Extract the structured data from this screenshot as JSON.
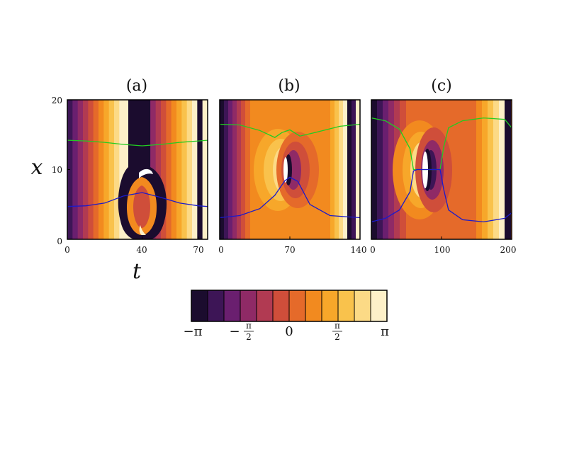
{
  "chart_data": [
    {
      "type": "heatmap",
      "title": "(a)",
      "xlabel": "t",
      "ylabel": "x",
      "xlim": [
        0,
        75
      ],
      "ylim": [
        0,
        20
      ],
      "xticks": [
        "0",
        "40",
        "70"
      ],
      "yticks": [
        "0",
        "10",
        "20"
      ],
      "series": [
        {
          "color": "#22cc22",
          "x": [
            0,
            10,
            20,
            30,
            40,
            50,
            60,
            70,
            75
          ],
          "y": [
            14.2,
            14.1,
            13.9,
            13.6,
            13.4,
            13.6,
            13.9,
            14.1,
            14.2
          ]
        },
        {
          "color": "#1a1acc",
          "x": [
            0,
            10,
            20,
            30,
            40,
            50,
            60,
            70,
            75
          ],
          "y": [
            4.7,
            4.8,
            5.2,
            6.2,
            6.7,
            6.0,
            5.2,
            4.8,
            4.7
          ]
        }
      ]
    },
    {
      "type": "heatmap",
      "title": "(b)",
      "xlabel": "",
      "ylabel": "",
      "xlim": [
        0,
        140
      ],
      "ylim": [
        0,
        20
      ],
      "xticks": [
        "0",
        "70",
        "140"
      ],
      "yticks": [],
      "series": [
        {
          "color": "#22cc22",
          "x": [
            0,
            20,
            40,
            55,
            62,
            70,
            80,
            95,
            120,
            140
          ],
          "y": [
            16.5,
            16.4,
            15.6,
            14.6,
            15.3,
            15.7,
            14.8,
            15.3,
            16.2,
            16.5
          ]
        },
        {
          "color": "#1a1acc",
          "x": [
            0,
            20,
            40,
            55,
            65,
            70,
            78,
            90,
            110,
            140
          ],
          "y": [
            3.1,
            3.4,
            4.4,
            6.3,
            8.4,
            8.9,
            8.3,
            5.0,
            3.4,
            3.1
          ]
        }
      ]
    },
    {
      "type": "heatmap",
      "title": "(c)",
      "xlabel": "",
      "ylabel": "",
      "xlim": [
        0,
        200
      ],
      "ylim": [
        0,
        20
      ],
      "xticks": [
        "0",
        "100",
        "200"
      ],
      "yticks": [],
      "series": [
        {
          "color": "#22cc22",
          "x": [
            0,
            20,
            40,
            55,
            60,
            65,
            80,
            98,
            103,
            110,
            130,
            160,
            190,
            200
          ],
          "y": [
            17.4,
            17.0,
            15.8,
            13.0,
            10.0,
            10.0,
            10.0,
            10.0,
            13.2,
            16.0,
            17.0,
            17.4,
            17.2,
            16.0
          ]
        },
        {
          "color": "#1a1acc",
          "x": [
            0,
            20,
            40,
            55,
            60,
            65,
            80,
            98,
            103,
            110,
            130,
            160,
            190,
            200
          ],
          "y": [
            2.5,
            3.0,
            4.2,
            6.8,
            9.8,
            10.0,
            10.0,
            10.0,
            7.2,
            4.2,
            2.8,
            2.5,
            3.0,
            3.8
          ]
        }
      ]
    },
    {
      "type": "heatmap",
      "title": "",
      "colorbar": {
        "levels": 12,
        "tick_labels": [
          "−π",
          "−π/2",
          "0",
          "π/2",
          "π"
        ]
      }
    }
  ]
}
